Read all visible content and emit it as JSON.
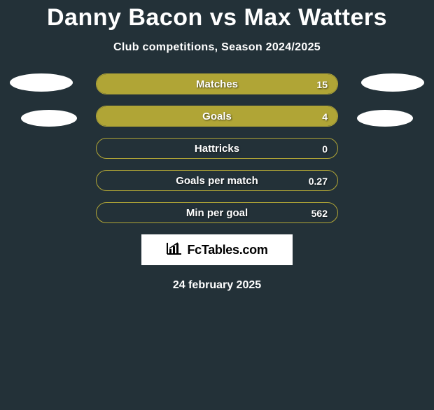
{
  "title": "Danny Bacon vs Max Watters",
  "subtitle": "Club competitions, Season 2024/2025",
  "date": "24 february 2025",
  "logo_text": "FcTables.com",
  "colors": {
    "background": "#233138",
    "bar_fill": "#b0a536",
    "bar_border": "#b0a536",
    "ellipse": "#ffffff",
    "text": "#ffffff"
  },
  "stats": [
    {
      "label": "Matches",
      "value": "15",
      "fill_pct": 100
    },
    {
      "label": "Goals",
      "value": "4",
      "fill_pct": 100
    },
    {
      "label": "Hattricks",
      "value": "0",
      "fill_pct": 0
    },
    {
      "label": "Goals per match",
      "value": "0.27",
      "fill_pct": 0
    },
    {
      "label": "Min per goal",
      "value": "562",
      "fill_pct": 0
    }
  ]
}
